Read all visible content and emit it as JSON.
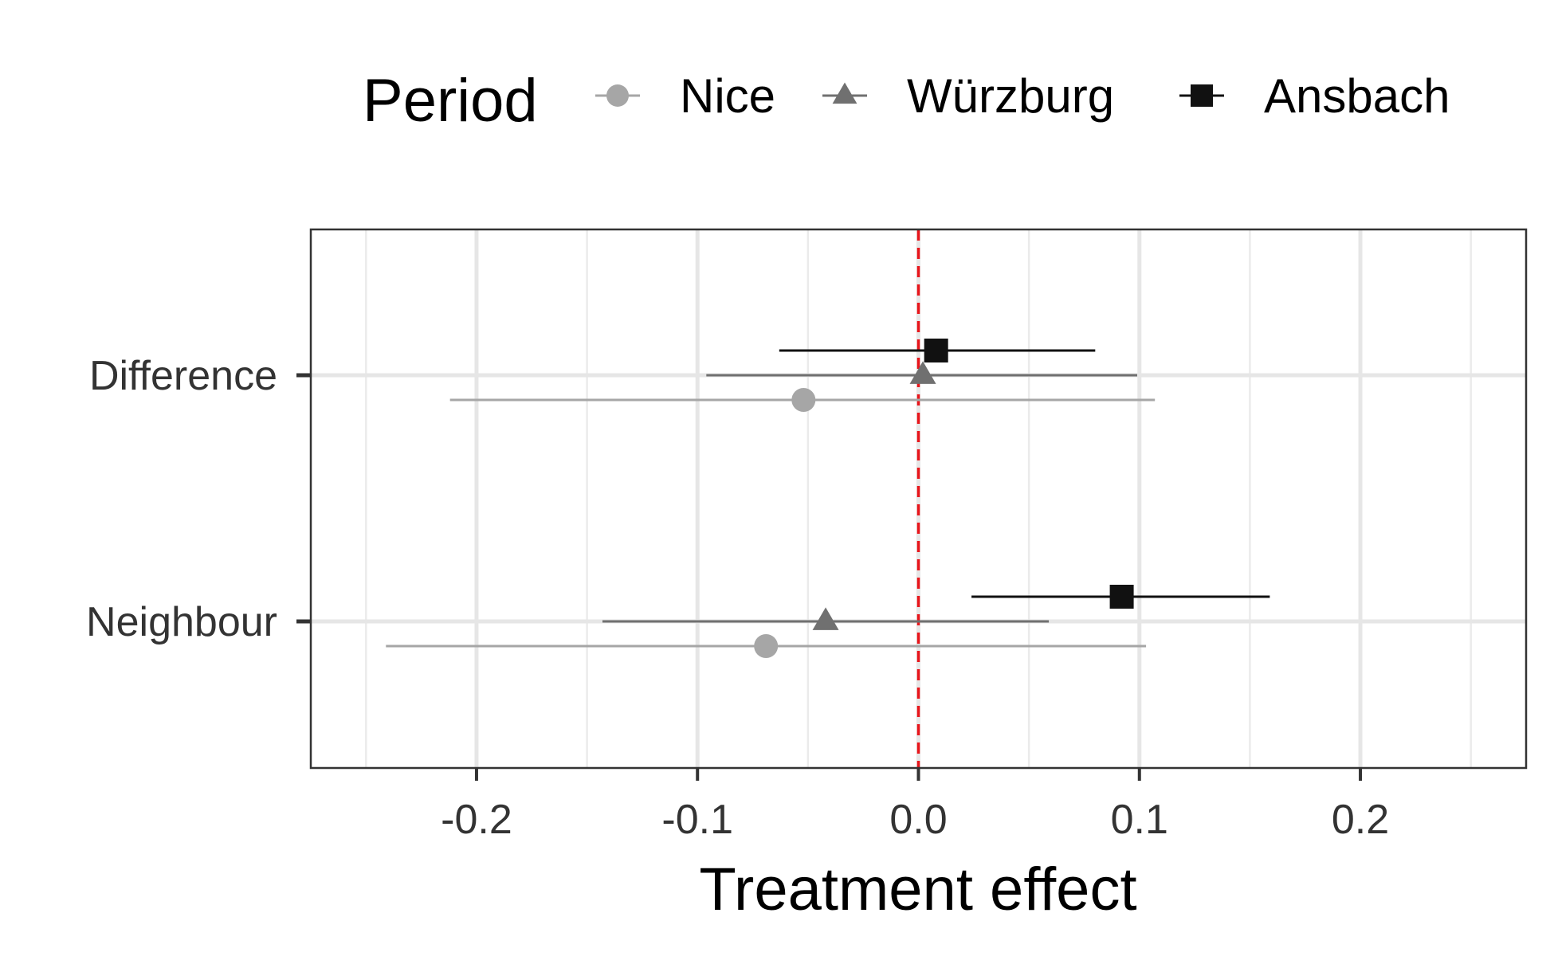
{
  "chart_data": {
    "type": "scatter",
    "variant": "point-range",
    "xlabel": "Treatment effect",
    "ylabel": "",
    "xlim": [
      -0.275,
      0.275
    ],
    "x_ticks": [
      "-0.2",
      "-0.1",
      "0.0",
      "0.1",
      "0.2"
    ],
    "x_tick_values": [
      -0.2,
      -0.1,
      0.0,
      0.1,
      0.2
    ],
    "categories": [
      "Difference",
      "Neighbour"
    ],
    "reference_line": {
      "x": 0.0,
      "style": "dashed",
      "color": "#e8151b"
    },
    "grid": true,
    "legend": {
      "title": "Period",
      "position": "top"
    },
    "series": [
      {
        "name": "Nice",
        "marker": "circle",
        "color": "#a6a6a6",
        "points": [
          {
            "category": "Difference",
            "estimate": -0.052,
            "low": -0.212,
            "high": 0.107
          },
          {
            "category": "Neighbour",
            "estimate": -0.069,
            "low": -0.241,
            "high": 0.103
          }
        ]
      },
      {
        "name": "Würzburg",
        "marker": "triangle",
        "color": "#707070",
        "points": [
          {
            "category": "Difference",
            "estimate": 0.002,
            "low": -0.096,
            "high": 0.099
          },
          {
            "category": "Neighbour",
            "estimate": -0.042,
            "low": -0.143,
            "high": 0.059
          }
        ]
      },
      {
        "name": "Ansbach",
        "marker": "square",
        "color": "#111111",
        "points": [
          {
            "category": "Difference",
            "estimate": 0.008,
            "low": -0.063,
            "high": 0.08
          },
          {
            "category": "Neighbour",
            "estimate": 0.092,
            "low": 0.024,
            "high": 0.159
          }
        ]
      }
    ]
  }
}
